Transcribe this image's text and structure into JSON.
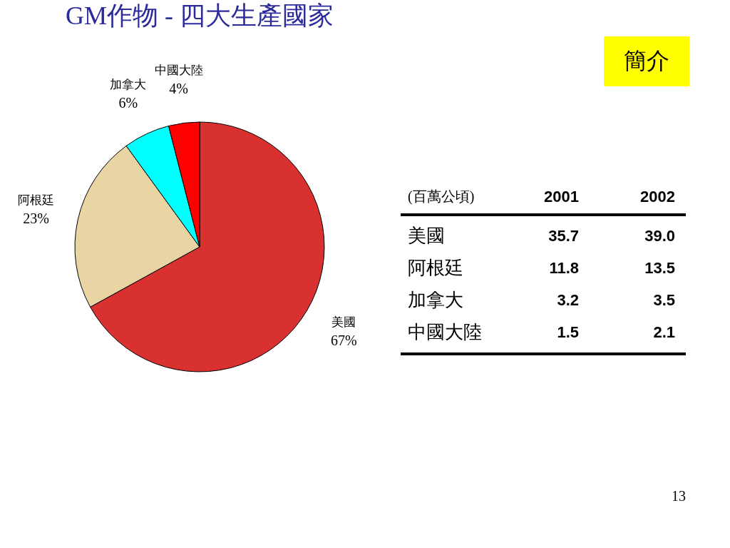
{
  "chart_data": [
    {
      "type": "pie",
      "title": "GM作物 - 四大生產國家",
      "categories": [
        "美國",
        "阿根廷",
        "加拿大",
        "中國大陸"
      ],
      "values": [
        67,
        23,
        6,
        4
      ],
      "colors": [
        "#d93030",
        "#e8d5a3",
        "#00ffff",
        "#ff0000"
      ],
      "value_labels": [
        "67%",
        "23%",
        "6%",
        "4%"
      ]
    },
    {
      "type": "other",
      "annotations": [
        "簡介",
        "(百萬公頃)",
        "2001",
        "2002",
        "美國",
        "35.7",
        "39.0",
        "阿根廷",
        "11.8",
        "13.5",
        "加拿大",
        "3.2",
        "3.5",
        "中國大陸",
        "1.5",
        "2.1",
        "13"
      ]
    }
  ]
}
